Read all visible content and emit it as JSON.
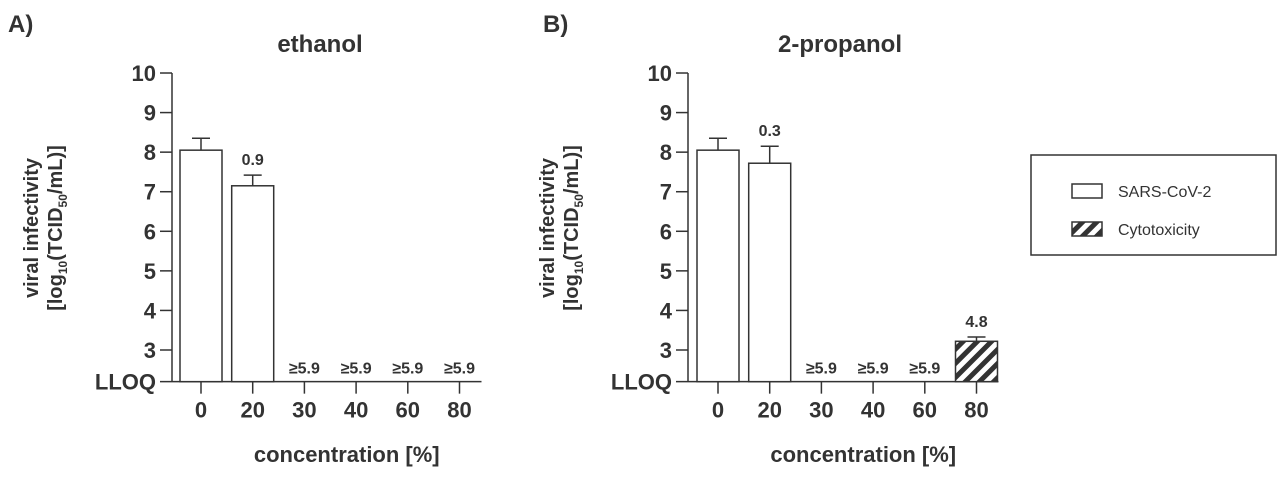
{
  "chart_data": [
    {
      "type": "bar",
      "panel_label": "A)",
      "title": "ethanol",
      "xlabel": "concentration [%]",
      "ylabel_line1": "viral infectivity",
      "ylabel_line2": {
        "a": "[log",
        "sub1": "10",
        "b": "(TCID",
        "sub2": "50",
        "c": "/mL)]"
      },
      "yticks": [
        "10",
        "9",
        "8",
        "7",
        "6",
        "5",
        "4",
        "3"
      ],
      "ytick_values": [
        10,
        9,
        8,
        7,
        6,
        5,
        4,
        3
      ],
      "lloq_label": "LLOQ",
      "lloq_value": 2.2,
      "ylim": [
        2.2,
        10
      ],
      "categories": [
        "0",
        "20",
        "30",
        "40",
        "60",
        "80"
      ],
      "values": [
        8.05,
        7.15,
        null,
        null,
        null,
        null
      ],
      "errors": [
        0.3,
        0.27,
        null,
        null,
        null,
        null
      ],
      "series_type": [
        "sars",
        "sars",
        "sars",
        "sars",
        "sars",
        "sars"
      ],
      "annotations": [
        "",
        "0.9",
        "≥5.9",
        "≥5.9",
        "≥5.9",
        "≥5.9"
      ]
    },
    {
      "type": "bar",
      "panel_label": "B)",
      "title": "2-propanol",
      "xlabel": "concentration [%]",
      "ylabel_line1": "viral infectivity",
      "ylabel_line2": {
        "a": "[log",
        "sub1": "10",
        "b": "(TCID",
        "sub2": "50",
        "c": "/mL)]"
      },
      "yticks": [
        "10",
        "9",
        "8",
        "7",
        "6",
        "5",
        "4",
        "3"
      ],
      "ytick_values": [
        10,
        9,
        8,
        7,
        6,
        5,
        4,
        3
      ],
      "lloq_label": "LLOQ",
      "lloq_value": 2.2,
      "ylim": [
        2.2,
        10
      ],
      "categories": [
        "0",
        "20",
        "30",
        "40",
        "60",
        "80"
      ],
      "values": [
        8.05,
        7.72,
        null,
        null,
        null,
        3.22
      ],
      "errors": [
        0.3,
        0.43,
        null,
        null,
        null,
        0.11
      ],
      "series_type": [
        "sars",
        "sars",
        "sars",
        "sars",
        "sars",
        "cyto"
      ],
      "annotations": [
        "",
        "0.3",
        "≥5.9",
        "≥5.9",
        "≥5.9",
        "4.8"
      ]
    }
  ],
  "legend": {
    "placement": "right",
    "items": [
      {
        "label": "SARS-CoV-2",
        "pattern": "open"
      },
      {
        "label": "Cytotoxicity",
        "pattern": "hatched"
      }
    ]
  },
  "colors": {
    "ink": "#333333",
    "background": "#ffffff"
  }
}
